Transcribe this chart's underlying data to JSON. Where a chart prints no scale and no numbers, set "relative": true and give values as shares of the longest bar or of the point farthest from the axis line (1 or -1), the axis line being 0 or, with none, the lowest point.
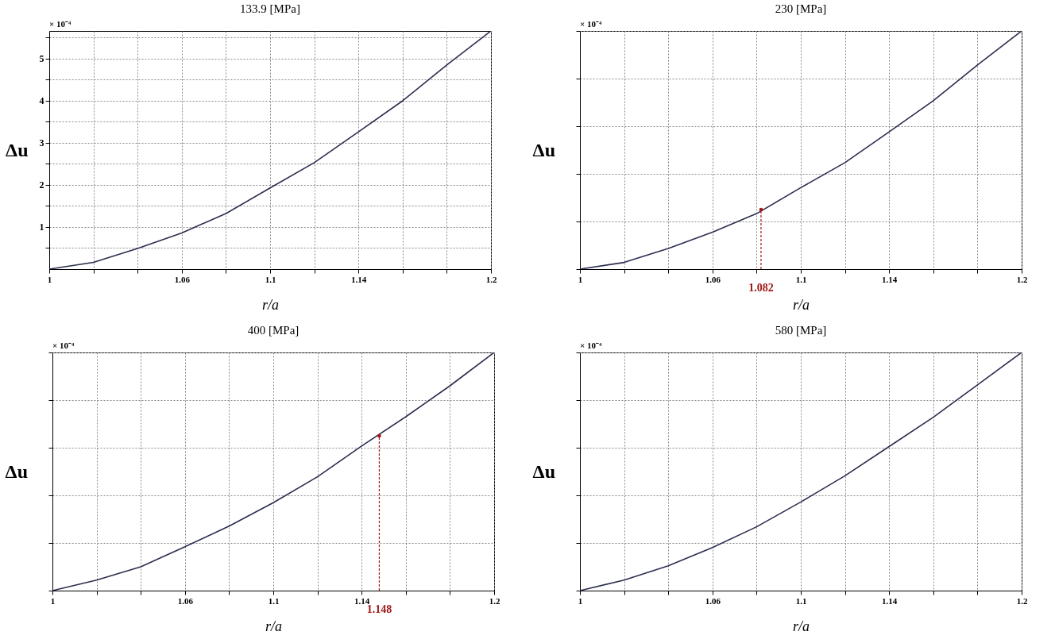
{
  "chart_data": [
    {
      "type": "line",
      "title": "133.9 [MPa]",
      "xlabel": "r/a",
      "ylabel": "Δu",
      "x": [
        1,
        1.02,
        1.04,
        1.06,
        1.08,
        1.1,
        1.12,
        1.14,
        1.16,
        1.18,
        1.2
      ],
      "series": [
        {
          "color": "#2b2d4f",
          "values": [
            0,
            0.16,
            0.49,
            0.86,
            1.32,
            1.93,
            2.53,
            3.26,
            4.0,
            4.85,
            5.66
          ]
        }
      ],
      "xlim": [
        1,
        1.2
      ],
      "xticks": [
        1,
        {
          "value": 1.02,
          "label": null
        },
        {
          "value": 1.04,
          "label": null
        },
        1.06,
        {
          "value": 1.08,
          "label": null
        },
        1.1,
        {
          "value": 1.12,
          "label": null
        },
        1.14,
        {
          "value": 1.16,
          "label": null
        },
        {
          "value": 1.18,
          "label": null
        },
        1.2
      ],
      "ylim": [
        0,
        5.66
      ],
      "yticks": [
        {
          "value": 0.5,
          "label": null
        },
        1,
        {
          "value": 1.5,
          "label": null
        },
        2,
        {
          "value": 2.5,
          "label": null
        },
        3,
        {
          "value": 3.5,
          "label": null
        },
        4,
        {
          "value": 4.5,
          "label": null
        },
        5,
        {
          "value": 5.5,
          "label": null
        }
      ],
      "grid": true,
      "annotations": [
        "× 10⁻⁴"
      ]
    },
    {
      "type": "line",
      "title": "230 [MPa]",
      "xlabel": "r/a",
      "ylabel": "Δu",
      "x": [
        1,
        1.02,
        1.04,
        1.06,
        1.08,
        1.1,
        1.12,
        1.14,
        1.16,
        1.18,
        1.2
      ],
      "relative": true,
      "series": [
        {
          "color": "#2b2d4f",
          "values": [
            0,
            0.028,
            0.087,
            0.155,
            0.233,
            0.342,
            0.447,
            0.576,
            0.707,
            0.857,
            1
          ]
        }
      ],
      "xlim": [
        1,
        1.2
      ],
      "xticks": [
        1,
        {
          "value": 1.02,
          "label": null
        },
        {
          "value": 1.04,
          "label": null
        },
        1.06,
        {
          "value": 1.08,
          "label": null
        },
        1.1,
        {
          "value": 1.12,
          "label": null
        },
        1.14,
        {
          "value": 1.16,
          "label": null
        },
        {
          "value": 1.18,
          "label": null
        },
        1.2
      ],
      "grid": true,
      "annotations": [
        "× 10⁻⁴",
        {
          "text": "1.082",
          "x": 1.082,
          "y": 0.25
        }
      ]
    },
    {
      "type": "line",
      "title": "400 [MPa]",
      "xlabel": "r/a",
      "ylabel": "Δu",
      "x": [
        1,
        1.02,
        1.04,
        1.06,
        1.08,
        1.1,
        1.12,
        1.14,
        1.16,
        1.18,
        1.2
      ],
      "relative": true,
      "series": [
        {
          "color": "#2b2d4f",
          "values": [
            0,
            0.044,
            0.1,
            0.184,
            0.271,
            0.369,
            0.478,
            0.607,
            0.73,
            0.86,
            1
          ]
        }
      ],
      "xlim": [
        1,
        1.2
      ],
      "xticks": [
        1,
        {
          "value": 1.02,
          "label": null
        },
        {
          "value": 1.04,
          "label": null
        },
        1.06,
        {
          "value": 1.08,
          "label": null
        },
        1.1,
        {
          "value": 1.12,
          "label": null
        },
        1.14,
        {
          "value": 1.16,
          "label": null
        },
        {
          "value": 1.18,
          "label": null
        },
        1.2
      ],
      "grid": true,
      "annotations": [
        "× 10⁻⁴",
        {
          "text": "1.148",
          "x": 1.148,
          "y": 0.65
        }
      ]
    },
    {
      "type": "line",
      "title": "580 [MPa]",
      "xlabel": "r/a",
      "ylabel": "Δu",
      "x": [
        1,
        1.02,
        1.04,
        1.06,
        1.08,
        1.1,
        1.12,
        1.14,
        1.16,
        1.18,
        1.2
      ],
      "relative": true,
      "series": [
        {
          "color": "#2b2d4f",
          "values": [
            0,
            0.044,
            0.104,
            0.181,
            0.268,
            0.372,
            0.482,
            0.605,
            0.728,
            0.864,
            1
          ]
        }
      ],
      "xlim": [
        1,
        1.2
      ],
      "xticks": [
        1,
        {
          "value": 1.02,
          "label": null
        },
        {
          "value": 1.04,
          "label": null
        },
        1.06,
        {
          "value": 1.08,
          "label": null
        },
        1.1,
        {
          "value": 1.12,
          "label": null
        },
        1.14,
        {
          "value": 1.16,
          "label": null
        },
        {
          "value": 1.18,
          "label": null
        },
        1.2
      ],
      "grid": true,
      "annotations": [
        "× 10⁻⁴"
      ]
    }
  ]
}
